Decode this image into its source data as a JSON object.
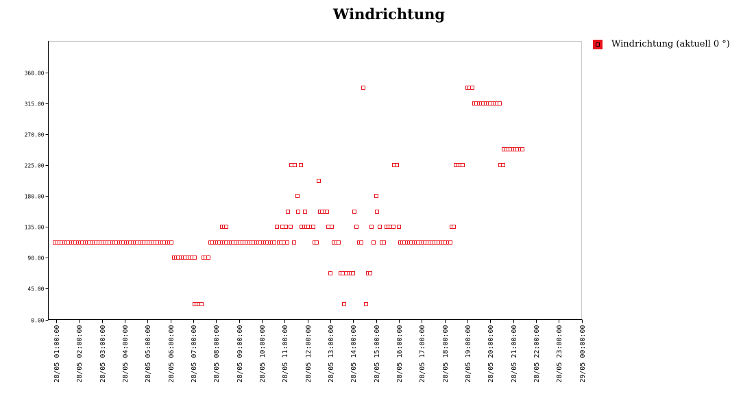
{
  "chart_data": {
    "type": "scatter",
    "title": "Windrichtung",
    "xlabel": "",
    "ylabel": "",
    "ylim": [
      0,
      405
    ],
    "xlim_hours": [
      0.65,
      24.0
    ],
    "y_ticks": [
      "0.00",
      "45.00",
      "90.00",
      "135.00",
      "180.00",
      "225.00",
      "270.00",
      "315.00",
      "360.00"
    ],
    "x_ticks": [
      "28/05 01:00:00",
      "28/05 02:00:00",
      "28/05 03:00:00",
      "28/05 04:00:00",
      "28/05 05:00:00",
      "28/05 06:00:00",
      "28/05 07:00:00",
      "28/05 08:00:00",
      "28/05 09:00:00",
      "28/05 10:00:00",
      "28/05 11:00:00",
      "28/05 12:00:00",
      "28/05 13:00:00",
      "28/05 14:00:00",
      "28/05 15:00:00",
      "28/05 16:00:00",
      "28/05 17:00:00",
      "28/05 18:00:00",
      "28/05 19:00:00",
      "28/05 20:00:00",
      "28/05 21:00:00",
      "28/05 22:00:00",
      "28/05 23:00:00",
      "29/05 00:00:00"
    ],
    "legend": {
      "position": "right",
      "entries": [
        {
          "label": "Windrichtung (aktuell 0 °)",
          "color": "#e8141c"
        }
      ]
    },
    "series": [
      {
        "color": "#e8141c",
        "points": [
          [
            0.95,
            112.5
          ],
          [
            1.05,
            112.5
          ],
          [
            1.15,
            112.5
          ],
          [
            1.25,
            112.5
          ],
          [
            1.35,
            112.5
          ],
          [
            1.45,
            112.5
          ],
          [
            1.55,
            112.5
          ],
          [
            1.65,
            112.5
          ],
          [
            1.75,
            112.5
          ],
          [
            1.85,
            112.5
          ],
          [
            1.95,
            112.5
          ],
          [
            2.05,
            112.5
          ],
          [
            2.15,
            112.5
          ],
          [
            2.25,
            112.5
          ],
          [
            2.35,
            112.5
          ],
          [
            2.45,
            112.5
          ],
          [
            2.55,
            112.5
          ],
          [
            2.65,
            112.5
          ],
          [
            2.75,
            112.5
          ],
          [
            2.85,
            112.5
          ],
          [
            2.95,
            112.5
          ],
          [
            3.05,
            112.5
          ],
          [
            3.15,
            112.5
          ],
          [
            3.25,
            112.5
          ],
          [
            3.35,
            112.5
          ],
          [
            3.45,
            112.5
          ],
          [
            3.55,
            112.5
          ],
          [
            3.65,
            112.5
          ],
          [
            3.75,
            112.5
          ],
          [
            3.85,
            112.5
          ],
          [
            3.95,
            112.5
          ],
          [
            4.05,
            112.5
          ],
          [
            4.15,
            112.5
          ],
          [
            4.25,
            112.5
          ],
          [
            4.35,
            112.5
          ],
          [
            4.45,
            112.5
          ],
          [
            4.55,
            112.5
          ],
          [
            4.65,
            112.5
          ],
          [
            4.75,
            112.5
          ],
          [
            4.85,
            112.5
          ],
          [
            4.95,
            112.5
          ],
          [
            5.05,
            112.5
          ],
          [
            5.15,
            112.5
          ],
          [
            5.25,
            112.5
          ],
          [
            5.35,
            112.5
          ],
          [
            5.45,
            112.5
          ],
          [
            5.55,
            112.5
          ],
          [
            5.65,
            112.5
          ],
          [
            5.75,
            112.5
          ],
          [
            5.85,
            112.5
          ],
          [
            5.95,
            112.5
          ],
          [
            6.05,
            112.5
          ],
          [
            6.15,
            90
          ],
          [
            6.25,
            90
          ],
          [
            6.35,
            90
          ],
          [
            6.45,
            90
          ],
          [
            6.55,
            90
          ],
          [
            6.65,
            90
          ],
          [
            6.75,
            90
          ],
          [
            6.85,
            90
          ],
          [
            6.95,
            90
          ],
          [
            7.05,
            90
          ],
          [
            7.05,
            22.5
          ],
          [
            7.15,
            22.5
          ],
          [
            7.25,
            22.5
          ],
          [
            7.35,
            22.5
          ],
          [
            7.45,
            90
          ],
          [
            7.55,
            90
          ],
          [
            7.65,
            90
          ],
          [
            7.75,
            112.5
          ],
          [
            7.85,
            112.5
          ],
          [
            7.95,
            112.5
          ],
          [
            8.05,
            112.5
          ],
          [
            8.15,
            112.5
          ],
          [
            8.25,
            112.5
          ],
          [
            8.25,
            135
          ],
          [
            8.35,
            135
          ],
          [
            8.45,
            135
          ],
          [
            8.35,
            112.5
          ],
          [
            8.45,
            112.5
          ],
          [
            8.55,
            112.5
          ],
          [
            8.65,
            112.5
          ],
          [
            8.75,
            112.5
          ],
          [
            8.85,
            112.5
          ],
          [
            8.95,
            112.5
          ],
          [
            9.05,
            112.5
          ],
          [
            9.15,
            112.5
          ],
          [
            9.25,
            112.5
          ],
          [
            9.35,
            112.5
          ],
          [
            9.45,
            112.5
          ],
          [
            9.55,
            112.5
          ],
          [
            9.65,
            112.5
          ],
          [
            9.75,
            112.5
          ],
          [
            9.85,
            112.5
          ],
          [
            9.95,
            112.5
          ],
          [
            10.05,
            112.5
          ],
          [
            10.15,
            112.5
          ],
          [
            10.25,
            112.5
          ],
          [
            10.35,
            112.5
          ],
          [
            10.45,
            112.5
          ],
          [
            10.55,
            112.5
          ],
          [
            10.65,
            135
          ],
          [
            10.75,
            112.5
          ],
          [
            10.85,
            112.5
          ],
          [
            10.9,
            135
          ],
          [
            10.95,
            112.5
          ],
          [
            11.05,
            135
          ],
          [
            11.1,
            112.5
          ],
          [
            11.15,
            157.5
          ],
          [
            11.25,
            135
          ],
          [
            11.3,
            225
          ],
          [
            11.4,
            112.5
          ],
          [
            11.45,
            225
          ],
          [
            11.55,
            180
          ],
          [
            11.6,
            157.5
          ],
          [
            11.7,
            225
          ],
          [
            11.75,
            135
          ],
          [
            11.85,
            135
          ],
          [
            11.9,
            157.5
          ],
          [
            11.95,
            135
          ],
          [
            12.05,
            135
          ],
          [
            12.15,
            135
          ],
          [
            12.25,
            135
          ],
          [
            12.3,
            112.5
          ],
          [
            12.4,
            112.5
          ],
          [
            12.5,
            202.5
          ],
          [
            12.55,
            157.5
          ],
          [
            12.65,
            157.5
          ],
          [
            12.75,
            157.5
          ],
          [
            12.85,
            157.5
          ],
          [
            12.9,
            135
          ],
          [
            13.0,
            67.5
          ],
          [
            13.05,
            135
          ],
          [
            13.15,
            112.5
          ],
          [
            13.25,
            112.5
          ],
          [
            13.35,
            112.5
          ],
          [
            13.45,
            67.5
          ],
          [
            13.55,
            67.5
          ],
          [
            13.6,
            22.5
          ],
          [
            13.7,
            67.5
          ],
          [
            13.8,
            67.5
          ],
          [
            13.9,
            67.5
          ],
          [
            14.0,
            67.5
          ],
          [
            14.05,
            157.5
          ],
          [
            14.15,
            135
          ],
          [
            14.25,
            112.5
          ],
          [
            14.35,
            112.5
          ],
          [
            14.45,
            337.5
          ],
          [
            14.55,
            22.5
          ],
          [
            14.65,
            67.5
          ],
          [
            14.75,
            67.5
          ],
          [
            14.8,
            135
          ],
          [
            14.9,
            112.5
          ],
          [
            15.0,
            180
          ],
          [
            15.05,
            157.5
          ],
          [
            15.15,
            135
          ],
          [
            15.25,
            112.5
          ],
          [
            15.35,
            112.5
          ],
          [
            15.45,
            135
          ],
          [
            15.55,
            135
          ],
          [
            15.65,
            135
          ],
          [
            15.75,
            135
          ],
          [
            15.8,
            225
          ],
          [
            15.9,
            225
          ],
          [
            16.0,
            135
          ],
          [
            16.05,
            112.5
          ],
          [
            16.15,
            112.5
          ],
          [
            16.25,
            112.5
          ],
          [
            16.35,
            112.5
          ],
          [
            16.45,
            112.5
          ],
          [
            16.55,
            112.5
          ],
          [
            16.65,
            112.5
          ],
          [
            16.75,
            112.5
          ],
          [
            16.85,
            112.5
          ],
          [
            16.95,
            112.5
          ],
          [
            17.05,
            112.5
          ],
          [
            17.15,
            112.5
          ],
          [
            17.25,
            112.5
          ],
          [
            17.35,
            112.5
          ],
          [
            17.45,
            112.5
          ],
          [
            17.55,
            112.5
          ],
          [
            17.65,
            112.5
          ],
          [
            17.75,
            112.5
          ],
          [
            17.85,
            112.5
          ],
          [
            17.95,
            112.5
          ],
          [
            18.05,
            112.5
          ],
          [
            18.15,
            112.5
          ],
          [
            18.25,
            112.5
          ],
          [
            18.3,
            135
          ],
          [
            18.4,
            135
          ],
          [
            18.5,
            225
          ],
          [
            18.6,
            225
          ],
          [
            18.7,
            225
          ],
          [
            18.8,
            225
          ],
          [
            19.0,
            337.5
          ],
          [
            19.1,
            337.5
          ],
          [
            19.2,
            337.5
          ],
          [
            19.3,
            315
          ],
          [
            19.4,
            315
          ],
          [
            19.5,
            315
          ],
          [
            19.6,
            315
          ],
          [
            19.7,
            315
          ],
          [
            19.8,
            315
          ],
          [
            19.9,
            315
          ],
          [
            20.0,
            315
          ],
          [
            20.1,
            315
          ],
          [
            20.2,
            315
          ],
          [
            20.3,
            315
          ],
          [
            20.4,
            315
          ],
          [
            20.45,
            225
          ],
          [
            20.55,
            225
          ],
          [
            20.6,
            247.5
          ],
          [
            20.7,
            247.5
          ],
          [
            20.8,
            247.5
          ],
          [
            20.9,
            247.5
          ],
          [
            21.0,
            247.5
          ],
          [
            21.1,
            247.5
          ],
          [
            21.2,
            247.5
          ],
          [
            21.3,
            247.5
          ],
          [
            21.4,
            247.5
          ]
        ]
      }
    ]
  }
}
